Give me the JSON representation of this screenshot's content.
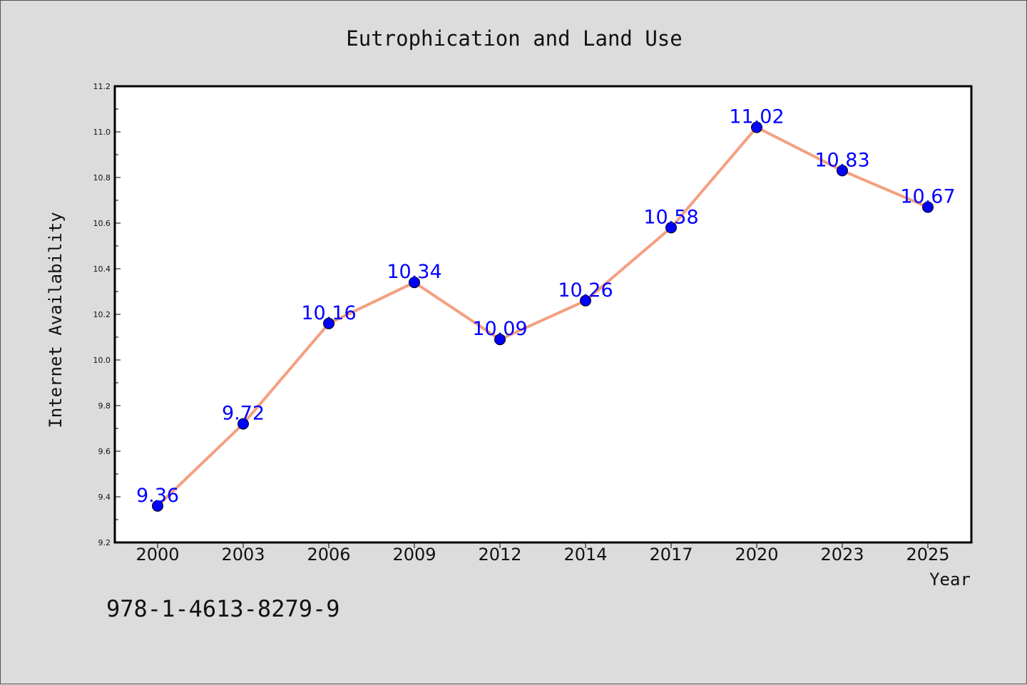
{
  "chart_data": {
    "type": "line",
    "title": "Eutrophication and Land Use",
    "xlabel": "Year",
    "ylabel": "Internet Availability",
    "categories": [
      "2000",
      "2003",
      "2006",
      "2009",
      "2012",
      "2014",
      "2017",
      "2020",
      "2023",
      "2025"
    ],
    "series": [
      {
        "values": [
          9.36,
          9.72,
          10.16,
          10.34,
          10.09,
          10.26,
          10.58,
          11.02,
          10.83,
          10.67
        ]
      }
    ],
    "data_labels": [
      "9.36",
      "9.72",
      "10.16",
      "10.34",
      "10.09",
      "10.26",
      "10.58",
      "11.02",
      "10.83",
      "10.67"
    ],
    "ylim": [
      9.2,
      11.2
    ],
    "yticks": [
      "9.2",
      "9.4",
      "9.6",
      "9.8",
      "10.0",
      "10.2",
      "10.4",
      "10.6",
      "10.8",
      "11.0",
      "11.2"
    ],
    "grid": false,
    "line_color": "#f4a081",
    "marker_color": "#0000ff",
    "label_color": "#0000ff"
  },
  "footer": {
    "isbn": "978-1-4613-8279-9"
  }
}
